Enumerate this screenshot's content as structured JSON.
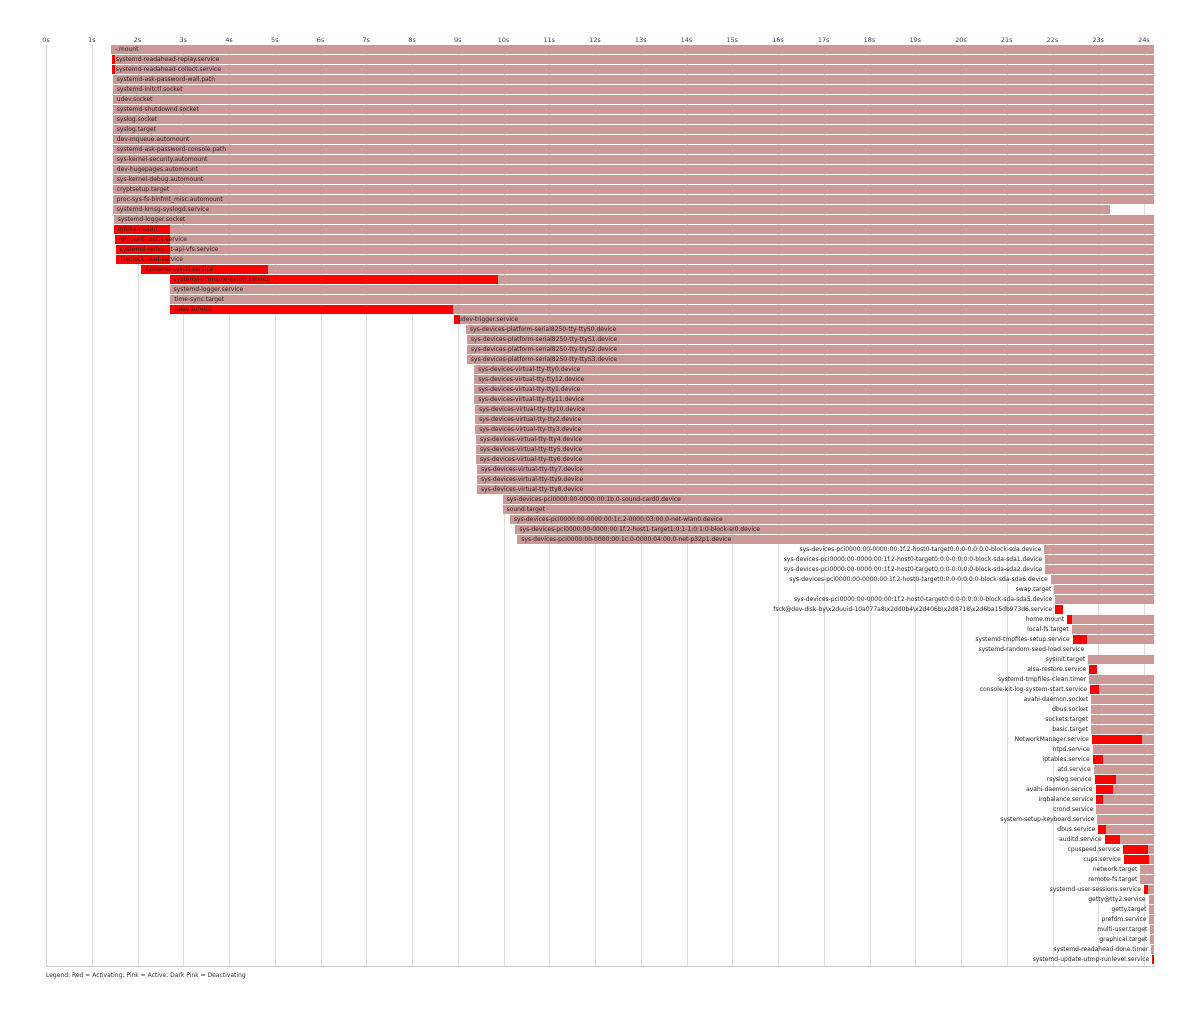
{
  "chart_data": {
    "type": "bar",
    "subtype": "gantt-timeline",
    "title": "",
    "xlabel": "",
    "ylabel": "",
    "xlim": [
      0,
      24.2
    ],
    "x_ticks": [
      "0s",
      "1s",
      "2s",
      "3s",
      "4s",
      "5s",
      "6s",
      "7s",
      "8s",
      "9s",
      "10s",
      "11s",
      "12s",
      "13s",
      "14s",
      "15s",
      "16s",
      "17s",
      "18s",
      "19s",
      "20s",
      "21s",
      "22s",
      "23s",
      "24s"
    ],
    "legend": "Legend: Red = Activating; Pink = Active; Dark Pink = Deactivating",
    "colors": {
      "activating": "#ff0000",
      "active": "#cc9999",
      "deactivating": "#cc6666"
    },
    "units": [
      {
        "name": "-.mount",
        "start": 1.42,
        "activating_end": null,
        "end": 24.22,
        "label_side": "in"
      },
      {
        "name": "systemd-readahead-replay.service",
        "start": 1.44,
        "activating_end": 1.5,
        "end": 24.22,
        "label_side": "in"
      },
      {
        "name": "systemd-readahead-collect.service",
        "start": 1.44,
        "activating_end": 1.5,
        "end": 24.22,
        "label_side": "in"
      },
      {
        "name": "systemd-ask-password-wall.path",
        "start": 1.46,
        "activating_end": null,
        "end": 24.22,
        "label_side": "in"
      },
      {
        "name": "systemd-initctl.socket",
        "start": 1.46,
        "activating_end": null,
        "end": 24.22,
        "label_side": "in"
      },
      {
        "name": "udev.socket",
        "start": 1.46,
        "activating_end": null,
        "end": 24.22,
        "label_side": "in"
      },
      {
        "name": "systemd-shutdownd.socket",
        "start": 1.46,
        "activating_end": null,
        "end": 24.22,
        "label_side": "in"
      },
      {
        "name": "syslog.socket",
        "start": 1.46,
        "activating_end": null,
        "end": 24.22,
        "label_side": "in"
      },
      {
        "name": "syslog.target",
        "start": 1.46,
        "activating_end": null,
        "end": 24.22,
        "label_side": "in"
      },
      {
        "name": "dev-mqueue.automount",
        "start": 1.46,
        "activating_end": null,
        "end": 24.22,
        "label_side": "in"
      },
      {
        "name": "systemd-ask-password-console.path",
        "start": 1.46,
        "activating_end": null,
        "end": 24.22,
        "label_side": "in"
      },
      {
        "name": "sys-kernel-security.automount",
        "start": 1.46,
        "activating_end": null,
        "end": 24.22,
        "label_side": "in"
      },
      {
        "name": "dev-hugepages.automount",
        "start": 1.46,
        "activating_end": null,
        "end": 24.22,
        "label_side": "in"
      },
      {
        "name": "sys-kernel-debug.automount",
        "start": 1.46,
        "activating_end": null,
        "end": 24.22,
        "label_side": "in"
      },
      {
        "name": "cryptsetup.target",
        "start": 1.46,
        "activating_end": null,
        "end": 24.22,
        "label_side": "in"
      },
      {
        "name": "proc-sys-fs-binfmt_misc.automount",
        "start": 1.46,
        "activating_end": null,
        "end": 24.22,
        "label_side": "in"
      },
      {
        "name": "systemd-kmsg-syslogd.service",
        "start": 1.46,
        "activating_end": null,
        "end": 23.26,
        "label_side": "in"
      },
      {
        "name": "systemd-logger.socket",
        "start": 1.48,
        "activating_end": null,
        "end": 24.22,
        "label_side": "in"
      },
      {
        "name": "media.mount",
        "start": 1.48,
        "activating_end": 2.7,
        "end": 24.22,
        "label_side": "in"
      },
      {
        "name": "remount-rootfs.service",
        "start": 1.5,
        "activating_end": 2.7,
        "end": 24.22,
        "label_side": "in"
      },
      {
        "name": "systemd-remount-api-vfs.service",
        "start": 1.52,
        "activating_end": 2.7,
        "end": 24.22,
        "label_side": "in"
      },
      {
        "name": "hwclock-load.service",
        "start": 1.54,
        "activating_end": 2.72,
        "end": 24.22,
        "label_side": "in"
      },
      {
        "name": "systemd-sysctl.service",
        "start": 2.08,
        "activating_end": 4.85,
        "end": 24.22,
        "label_side": "in"
      },
      {
        "name": "systemd-vconsole-setup.service",
        "start": 2.7,
        "activating_end": 9.88,
        "end": 24.22,
        "label_side": "in"
      },
      {
        "name": "systemd-logger.service",
        "start": 2.7,
        "activating_end": null,
        "end": 24.22,
        "label_side": "in"
      },
      {
        "name": "time-sync.target",
        "start": 2.72,
        "activating_end": null,
        "end": 24.22,
        "label_side": "in"
      },
      {
        "name": "udev.service",
        "start": 2.72,
        "activating_end": 8.9,
        "end": 24.22,
        "label_side": "in"
      },
      {
        "name": "udev-trigger.service",
        "start": 8.92,
        "activating_end": 9.04,
        "end": 24.22,
        "label_side": "in"
      },
      {
        "name": "sys-devices-platform-serial8250-tty-ttyS0.device",
        "start": 9.18,
        "activating_end": null,
        "end": 24.22,
        "label_side": "in"
      },
      {
        "name": "sys-devices-platform-serial8250-tty-ttyS1.device",
        "start": 9.2,
        "activating_end": null,
        "end": 24.22,
        "label_side": "in"
      },
      {
        "name": "sys-devices-platform-serial8250-tty-ttyS2.device",
        "start": 9.2,
        "activating_end": null,
        "end": 24.22,
        "label_side": "in"
      },
      {
        "name": "sys-devices-platform-serial8250-tty-ttyS3.device",
        "start": 9.2,
        "activating_end": null,
        "end": 24.22,
        "label_side": "in"
      },
      {
        "name": "sys-devices-virtual-tty-tty0.device",
        "start": 9.36,
        "activating_end": null,
        "end": 24.22,
        "label_side": "in"
      },
      {
        "name": "sys-devices-virtual-tty-tty12.device",
        "start": 9.36,
        "activating_end": null,
        "end": 24.22,
        "label_side": "in"
      },
      {
        "name": "sys-devices-virtual-tty-tty1.device",
        "start": 9.36,
        "activating_end": null,
        "end": 24.22,
        "label_side": "in"
      },
      {
        "name": "sys-devices-virtual-tty-tty11.device",
        "start": 9.36,
        "activating_end": null,
        "end": 24.22,
        "label_side": "in"
      },
      {
        "name": "sys-devices-virtual-tty-tty10.device",
        "start": 9.38,
        "activating_end": null,
        "end": 24.22,
        "label_side": "in"
      },
      {
        "name": "sys-devices-virtual-tty-tty2.device",
        "start": 9.38,
        "activating_end": null,
        "end": 24.22,
        "label_side": "in"
      },
      {
        "name": "sys-devices-virtual-tty-tty3.device",
        "start": 9.38,
        "activating_end": null,
        "end": 24.22,
        "label_side": "in"
      },
      {
        "name": "sys-devices-virtual-tty-tty4.device",
        "start": 9.4,
        "activating_end": null,
        "end": 24.22,
        "label_side": "in"
      },
      {
        "name": "sys-devices-virtual-tty-tty5.device",
        "start": 9.4,
        "activating_end": null,
        "end": 24.22,
        "label_side": "in"
      },
      {
        "name": "sys-devices-virtual-tty-tty6.device",
        "start": 9.4,
        "activating_end": null,
        "end": 24.22,
        "label_side": "in"
      },
      {
        "name": "sys-devices-virtual-tty-tty7.device",
        "start": 9.42,
        "activating_end": null,
        "end": 24.22,
        "label_side": "in"
      },
      {
        "name": "sys-devices-virtual-tty-tty9.device",
        "start": 9.42,
        "activating_end": null,
        "end": 24.22,
        "label_side": "in"
      },
      {
        "name": "sys-devices-virtual-tty-tty8.device",
        "start": 9.42,
        "activating_end": null,
        "end": 24.22,
        "label_side": "in"
      },
      {
        "name": "sys-devices-pci0000:00-0000:00:1b.0-sound-card0.device",
        "start": 9.98,
        "activating_end": null,
        "end": 24.22,
        "label_side": "in"
      },
      {
        "name": "sound.target",
        "start": 9.98,
        "activating_end": null,
        "end": 24.22,
        "label_side": "in"
      },
      {
        "name": "sys-devices-pci0000:00-0000:00:1c.2-0000:03:00.0-net-wlan0.device",
        "start": 10.14,
        "activating_end": null,
        "end": 24.22,
        "label_side": "in"
      },
      {
        "name": "sys-devices-pci0000:00-0000:00:1f.2-host1-target1:0:1-1:0:1:0-block-sr0.device",
        "start": 10.26,
        "activating_end": null,
        "end": 24.22,
        "label_side": "in"
      },
      {
        "name": "sys-devices-pci0000:00-0000:00:1c.0-0000:04:00.0-net-p32p1.device",
        "start": 10.3,
        "activating_end": null,
        "end": 24.22,
        "label_side": "in"
      },
      {
        "name": "sys-devices-pci0000:00-0000:00:1f.2-host0-target0:0:0-0:0:0:0-block-sda.device",
        "start": 21.82,
        "activating_end": null,
        "end": 24.22,
        "label_side": "left"
      },
      {
        "name": "sys-devices-pci0000:00-0000:00:1f.2-host0-target0:0:0-0:0:0:0-block-sda-sda1.device",
        "start": 21.84,
        "activating_end": null,
        "end": 24.22,
        "label_side": "left"
      },
      {
        "name": "sys-devices-pci0000:00-0000:00:1f.2-host0-target0:0:0-0:0:0:0-block-sda-sda2.device",
        "start": 21.84,
        "activating_end": null,
        "end": 24.22,
        "label_side": "left"
      },
      {
        "name": "sys-devices-pci0000:00-0000:00:1f.2-host0-target0:0:0-0:0:0:0-block-sda-sda6.device",
        "start": 21.96,
        "activating_end": null,
        "end": 24.22,
        "label_side": "left"
      },
      {
        "name": "swap.target",
        "start": 22.04,
        "activating_end": null,
        "end": 24.22,
        "label_side": "left"
      },
      {
        "name": "sys-devices-pci0000:00-0000:00:1f.2-host0-target0:0:0-0:0:0:0-block-sda-sda5.device",
        "start": 22.06,
        "activating_end": null,
        "end": 24.22,
        "label_side": "left"
      },
      {
        "name": "fsck@dev-disk-by\\x2duuid-10a077a8\\x2dd0b4\\x2d406b\\x2d8718\\x2d6ba15db973d6.service",
        "start": 22.06,
        "activating_end": 22.24,
        "end": 22.24,
        "label_side": "left"
      },
      {
        "name": "home.mount",
        "start": 22.32,
        "activating_end": 22.42,
        "end": 24.22,
        "label_side": "left"
      },
      {
        "name": "local-fs.target",
        "start": 22.42,
        "activating_end": null,
        "end": 24.22,
        "label_side": "left"
      },
      {
        "name": "systemd-tmpfiles-setup.service",
        "start": 22.44,
        "activating_end": 22.76,
        "end": 24.22,
        "label_side": "left"
      },
      {
        "name": "systemd-random-seed-load.service",
        "start": 22.76,
        "activating_end": 22.76,
        "end": 22.76,
        "label_side": "left"
      },
      {
        "name": "sysinit.target",
        "start": 22.78,
        "activating_end": null,
        "end": 24.22,
        "label_side": "left"
      },
      {
        "name": "alsa-restore.service",
        "start": 22.8,
        "activating_end": 22.98,
        "end": 22.98,
        "label_side": "left"
      },
      {
        "name": "systemd-tmpfiles-clean.timer",
        "start": 22.8,
        "activating_end": null,
        "end": 24.22,
        "label_side": "left"
      },
      {
        "name": "console-kit-log-system-start.service",
        "start": 22.82,
        "activating_end": 23.02,
        "end": 24.22,
        "label_side": "left"
      },
      {
        "name": "avahi-daemon.socket",
        "start": 22.84,
        "activating_end": null,
        "end": 24.22,
        "label_side": "left"
      },
      {
        "name": "dbus.socket",
        "start": 22.84,
        "activating_end": null,
        "end": 24.22,
        "label_side": "left"
      },
      {
        "name": "sockets.target",
        "start": 22.84,
        "activating_end": null,
        "end": 24.22,
        "label_side": "left"
      },
      {
        "name": "basic.target",
        "start": 22.84,
        "activating_end": null,
        "end": 24.22,
        "label_side": "left"
      },
      {
        "name": "NetworkManager.service",
        "start": 22.86,
        "activating_end": 23.96,
        "end": 24.22,
        "label_side": "left"
      },
      {
        "name": "ntpd.service",
        "start": 22.88,
        "activating_end": null,
        "end": 24.22,
        "label_side": "left"
      },
      {
        "name": "iptables.service",
        "start": 22.88,
        "activating_end": 23.1,
        "end": 24.22,
        "label_side": "left"
      },
      {
        "name": "atd.service",
        "start": 22.9,
        "activating_end": null,
        "end": 24.22,
        "label_side": "left"
      },
      {
        "name": "rsyslog.service",
        "start": 22.92,
        "activating_end": 23.38,
        "end": 24.22,
        "label_side": "left"
      },
      {
        "name": "avahi-daemon.service",
        "start": 22.94,
        "activating_end": 23.32,
        "end": 24.22,
        "label_side": "left"
      },
      {
        "name": "irqbalance.service",
        "start": 22.96,
        "activating_end": 23.1,
        "end": 24.22,
        "label_side": "left"
      },
      {
        "name": "crond.service",
        "start": 22.96,
        "activating_end": null,
        "end": 24.22,
        "label_side": "left"
      },
      {
        "name": "system-setup-keyboard.service",
        "start": 22.98,
        "activating_end": null,
        "end": 24.22,
        "label_side": "left"
      },
      {
        "name": "dbus.service",
        "start": 23.0,
        "activating_end": 23.18,
        "end": 24.22,
        "label_side": "left"
      },
      {
        "name": "auditd.service",
        "start": 23.14,
        "activating_end": 23.48,
        "end": 24.22,
        "label_side": "left"
      },
      {
        "name": "cpuspeed.service",
        "start": 23.54,
        "activating_end": 24.08,
        "end": 24.22,
        "label_side": "left"
      },
      {
        "name": "cups.service",
        "start": 23.56,
        "activating_end": 24.1,
        "end": 24.22,
        "label_side": "left"
      },
      {
        "name": "network.target",
        "start": 23.92,
        "activating_end": null,
        "end": 24.22,
        "label_side": "left"
      },
      {
        "name": "remote-fs.target",
        "start": 23.92,
        "activating_end": null,
        "end": 24.22,
        "label_side": "left"
      },
      {
        "name": "systemd-user-sessions.service",
        "start": 24.0,
        "activating_end": 24.08,
        "end": 24.22,
        "label_side": "left"
      },
      {
        "name": "getty@tty2.service",
        "start": 24.1,
        "activating_end": null,
        "end": 24.22,
        "label_side": "left"
      },
      {
        "name": "getty.target",
        "start": 24.12,
        "activating_end": null,
        "end": 24.22,
        "label_side": "left"
      },
      {
        "name": "prefdm.service",
        "start": 24.12,
        "activating_end": null,
        "end": 24.22,
        "label_side": "left"
      },
      {
        "name": "multi-user.target",
        "start": 24.14,
        "activating_end": null,
        "end": 24.22,
        "label_side": "left"
      },
      {
        "name": "graphical.target",
        "start": 24.14,
        "activating_end": null,
        "end": 24.22,
        "label_side": "left"
      },
      {
        "name": "systemd-readahead-done.timer",
        "start": 24.16,
        "activating_end": null,
        "end": 24.22,
        "label_side": "left"
      },
      {
        "name": "systemd-update-utmp-runlevel.service",
        "start": 24.18,
        "activating_end": 24.22,
        "end": 24.22,
        "label_side": "left"
      }
    ]
  },
  "legend": {
    "text": "Legend: Red = Activating; Pink = Active; Dark Pink = Deactivating"
  }
}
